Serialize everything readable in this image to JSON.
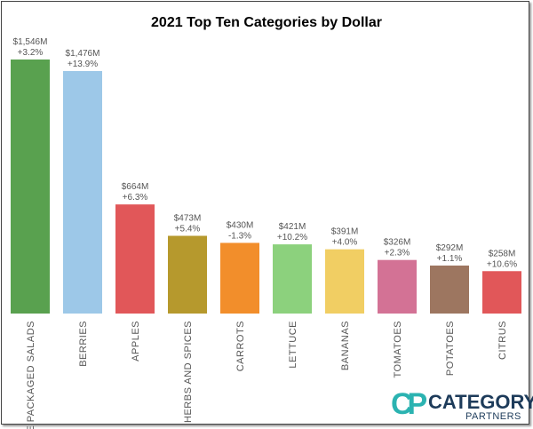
{
  "chart_data": {
    "type": "bar",
    "title": "2021 Top Ten Categories by Dollar",
    "xlabel": "",
    "ylabel": "",
    "ylim": [
      0,
      1546
    ],
    "grid": false,
    "categories": [
      "PRE PACKAGED SALADS",
      "BERRIES",
      "APPLES",
      "HERBS AND SPICES",
      "CARROTS",
      "LETTUCE",
      "BANANAS",
      "TOMATOES",
      "POTATOES",
      "CITRUS"
    ],
    "values": [
      1546,
      1476,
      664,
      473,
      430,
      421,
      391,
      326,
      292,
      258
    ],
    "value_labels": [
      "$1,546M",
      "$1,476M",
      "$664M",
      "$473M",
      "$430M",
      "$421M",
      "$391M",
      "$326M",
      "$292M",
      "$258M"
    ],
    "change_labels": [
      "+3.2%",
      "+13.9%",
      "+6.3%",
      "+5.4%",
      "-1.3%",
      "+10.2%",
      "+4.0%",
      "+2.3%",
      "+1.1%",
      "+10.6%"
    ],
    "colors": [
      "#59a14f",
      "#9dc8e8",
      "#e15759",
      "#b6992d",
      "#f28e2b",
      "#8cd17d",
      "#f1ce63",
      "#d37295",
      "#9d7660",
      "#e15759"
    ],
    "unit": "Millions USD"
  },
  "logo": {
    "cp": "CP",
    "line1": "CATEGORY",
    "line2": "PARTNERS"
  }
}
